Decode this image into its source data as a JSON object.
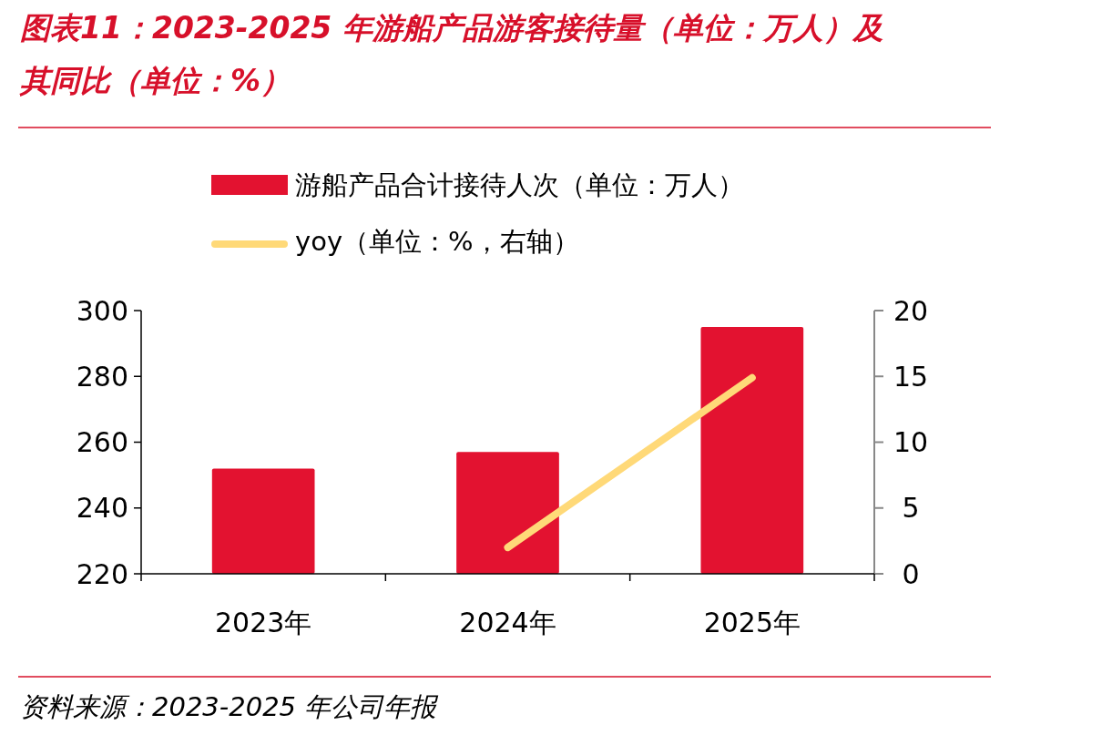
{
  "chart_data": {
    "type": "bar",
    "title": "图表11：2023-2025 年游船产品游客接待量（单位：万人）及其同比（单位：%）",
    "categories": [
      "2023年",
      "2024年",
      "2025年"
    ],
    "series": [
      {
        "name": "游船产品合计接待人次（单位：万人）",
        "color": "#e31230",
        "values": [
          252,
          257,
          295
        ]
      },
      {
        "name": "yoy（单位：%，右轴）",
        "type": "line",
        "axis": "y2",
        "color": "#ffd978",
        "values": [
          null,
          2.0,
          14.9
        ]
      }
    ],
    "ylim": [
      220,
      300
    ],
    "yticks": [
      220,
      240,
      260,
      280,
      300
    ],
    "y2lim": [
      0,
      20
    ],
    "y2ticks": [
      0,
      5,
      10,
      15,
      20
    ],
    "grid": false,
    "legend": "top",
    "marker": "none",
    "line_style": "solid",
    "annotations": [
      "资料来源：2023-2025 年公司年报"
    ]
  }
}
